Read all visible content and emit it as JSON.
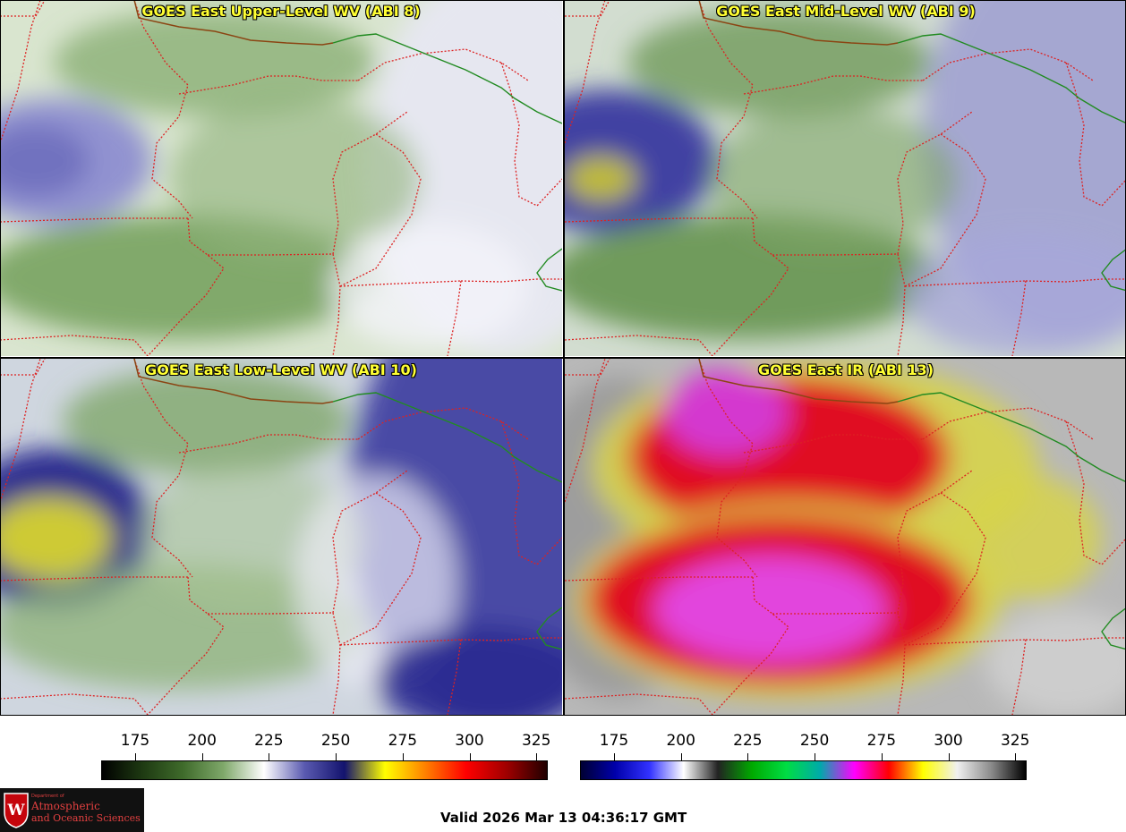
{
  "panels": [
    {
      "id": "upper",
      "title": "GOES East Upper-Level WV (ABI 8)",
      "palette": "wv"
    },
    {
      "id": "mid",
      "title": "GOES East Mid-Level WV (ABI 9)",
      "palette": "wv"
    },
    {
      "id": "low",
      "title": "GOES East Low-Level WV (ABI 10)",
      "palette": "wv"
    },
    {
      "id": "ir",
      "title": "GOES East IR (ABI 13)",
      "palette": "ir"
    }
  ],
  "colorbars": {
    "wv": {
      "ticks": [
        "175",
        "200",
        "225",
        "250",
        "275",
        "300",
        "325"
      ],
      "colors": [
        "#000000",
        "#1e3a12",
        "#3f6b2b",
        "#7fa86a",
        "#ffffff",
        "#5a5ab0",
        "#13136e",
        "#ffff00",
        "#ff8000",
        "#ff0000",
        "#a00000",
        "#200000"
      ]
    },
    "ir": {
      "ticks": [
        "175",
        "200",
        "225",
        "250",
        "275",
        "300",
        "325"
      ],
      "colors": [
        "#000033",
        "#0000aa",
        "#3232ff",
        "#ffffff",
        "#222222",
        "#00aa00",
        "#00dd44",
        "#00aaaa",
        "#ff00ff",
        "#ff0000",
        "#ffff00",
        "#f0f0f0",
        "#8a8a8a",
        "#000000"
      ]
    }
  },
  "colors": {
    "state_border": "#dd2222",
    "country_border": "#8b4513",
    "canada_border": "#228b22",
    "title_text": "#ffff33"
  },
  "valid_time": "Valid 2026 Mar 13 04:36:17 GMT",
  "logo": {
    "dept_text": "Department of",
    "line1": "Atmospheric",
    "line2": "and Oceanic Sciences",
    "icon": "uw-crest-icon"
  }
}
